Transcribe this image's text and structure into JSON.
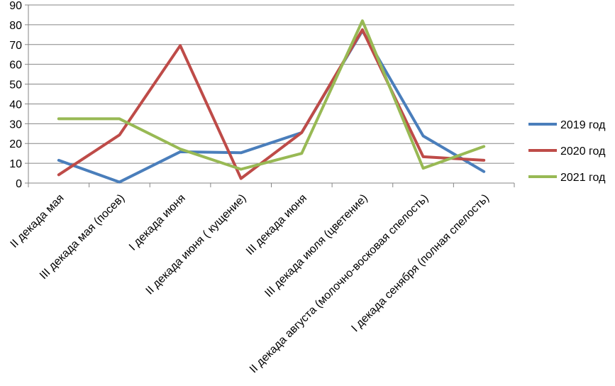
{
  "chart_data": {
    "type": "line",
    "title": "",
    "xlabel": "",
    "ylabel": "",
    "ylim": [
      0,
      90
    ],
    "ytick_step": 10,
    "grid": true,
    "legend_position": "right",
    "categories": [
      "II декада мая",
      "III декада мая (посев)",
      "I декада июня",
      "II декада июня ( кущение)",
      "III декада июня",
      "III декада июля (цветение)",
      "II декада августа (молочно-восковая спелость)",
      "I декада сенября (полная спелость)"
    ],
    "series": [
      {
        "name": "2019 год",
        "color": "#4a7ebb",
        "values": [
          11.5,
          0.5,
          15.8,
          15.3,
          25.5,
          77.0,
          23.8,
          5.8
        ]
      },
      {
        "name": "2020 год",
        "color": "#be4b48",
        "values": [
          4.2,
          24.3,
          69.5,
          2.3,
          25.5,
          77.5,
          13.3,
          11.5
        ]
      },
      {
        "name": "2021 год",
        "color": "#98b954",
        "values": [
          32.5,
          32.5,
          17.2,
          7.0,
          15.0,
          82.0,
          7.5,
          18.5
        ]
      }
    ]
  }
}
